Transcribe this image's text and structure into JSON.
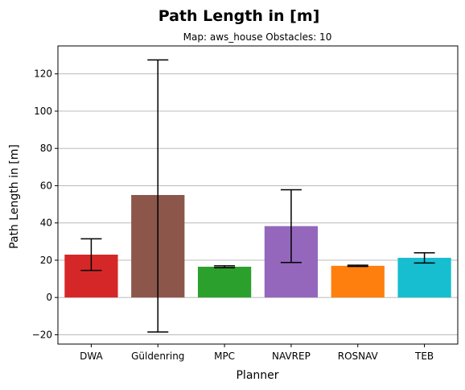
{
  "chart_data": {
    "type": "bar",
    "title": "Path Length in [m]",
    "subtitle": "Map: aws_house Obstacles: 10",
    "xlabel": "Planner",
    "ylabel": "Path Length in [m]",
    "ylim": [
      -25,
      135
    ],
    "yticks": [
      -20,
      0,
      20,
      40,
      60,
      80,
      100,
      120
    ],
    "ytick_labels": [
      "−20",
      "0",
      "20",
      "40",
      "60",
      "80",
      "100",
      "120"
    ],
    "grid": "y",
    "categories": [
      "DWA",
      "Güldenring",
      "MPC",
      "NAVREP",
      "ROSNAV",
      "TEB"
    ],
    "values": [
      23,
      55,
      16.5,
      38.3,
      17,
      21.3
    ],
    "error_low": [
      14.5,
      -18.5,
      16,
      18.8,
      16.7,
      18.5
    ],
    "error_high": [
      31.5,
      127.5,
      17,
      57.8,
      17.3,
      24
    ],
    "colors": [
      "#d62728",
      "#8c564b",
      "#2ca02c",
      "#9467bd",
      "#ff7f0e",
      "#17becf"
    ]
  }
}
